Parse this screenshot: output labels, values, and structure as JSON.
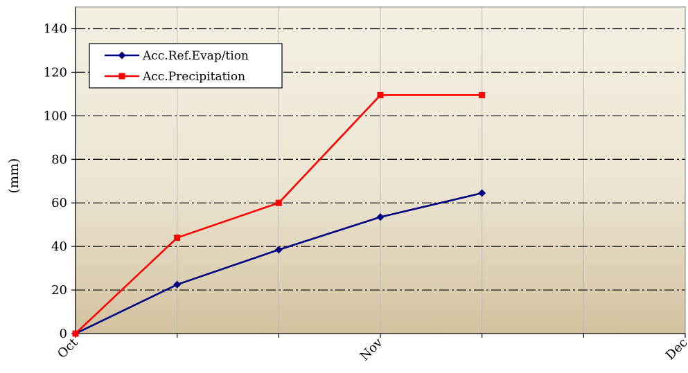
{
  "chart_data": {
    "type": "line",
    "ylabel": "(mm)",
    "xlabel": "",
    "ylim": [
      0,
      150
    ],
    "yticks": [
      0,
      20,
      40,
      60,
      80,
      100,
      120,
      140
    ],
    "x_tick_labels": [
      "Oct",
      "Nov",
      "Dec"
    ],
    "grid": true,
    "legend_position": "top-left",
    "series": [
      {
        "name": "Acc.Ref.Evap/tion",
        "color": "#000080",
        "marker": "diamond",
        "values": [
          0,
          22.5,
          38.5,
          53.5,
          64.5
        ]
      },
      {
        "name": "Acc.Precipitation",
        "color": "#ff0000",
        "marker": "square",
        "values": [
          0,
          44,
          60,
          109.5,
          109.5
        ]
      }
    ],
    "colors": {
      "background_top": "#f3f0e3",
      "background_bottom": "#d2c29e",
      "gridline": "#000000",
      "vertical_gridline": "#b8b8b8"
    }
  }
}
